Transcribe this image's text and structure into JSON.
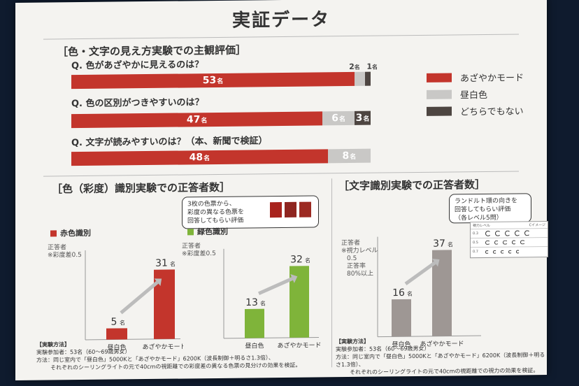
{
  "title": "実証データ",
  "section1": {
    "heading": "［色・文字の見え方実験での主観評価］",
    "unit": "名",
    "questions": [
      {
        "label": "Q. 色があざやかに見えるのは？",
        "values": [
          53,
          2,
          1
        ]
      },
      {
        "label": "Q. 色の区別がつきやすいのは？",
        "values": [
          47,
          6,
          3
        ]
      },
      {
        "label": "Q. 文字が読みやすいのは？（本、新聞で検証）",
        "values": [
          48,
          8,
          0
        ]
      }
    ],
    "legend": [
      "あざやかモード",
      "昼白色",
      "どちらでもない"
    ],
    "colors": [
      "#c3352c",
      "#c9c8c6",
      "#4d4541"
    ]
  },
  "section2": {
    "heading": "［色（彩度）識別実験での正答者数］",
    "callout": [
      "3枚の色票から、",
      "彩度の異なる色票を",
      "回答してもらい評価"
    ],
    "red_panel": {
      "key": "赤色識別",
      "axis_label": [
        "正答者",
        "※彩度差0.5"
      ],
      "categories": [
        "昼白色",
        "あざやかモード"
      ],
      "values": [
        5,
        31
      ],
      "colors": [
        "#c3352c",
        "#c3352c"
      ]
    },
    "green_panel": {
      "key": "緑色識別",
      "axis_label": [
        "正答者",
        "※彩度差0.5"
      ],
      "categories": [
        "昼白色",
        "あざやかモード"
      ],
      "values": [
        13,
        32
      ],
      "colors": [
        "#7fb43a",
        "#7fb43a"
      ]
    },
    "note": [
      "【実験方法】",
      "実験参加者：53名（60～69歳男女）",
      "方法：同じ室内で「昼白色」5000Kと「あざやかモード」6200K（波長制御＋明るさ1.3倍）、",
      "それぞれのシーリングライトの元で40cmの視距離での彩度差の異なる色票の見分けの効果を検証。"
    ]
  },
  "section3": {
    "heading": "［文字識別実験での正答者数］",
    "callout": [
      "ランドルト環の向きを",
      "回答してもらい評価",
      "（各レベル5問）"
    ],
    "chart_label": "視力レベル",
    "chart_label_right": "Cイメージ",
    "level_rows": [
      "0.3",
      "0.5",
      "0.7"
    ],
    "axis_label": [
      "正答者",
      "※視力レベル",
      "0.5",
      "正答率",
      "80%以上"
    ],
    "categories": [
      "昼白色",
      "あざやかモード"
    ],
    "values": [
      16,
      37
    ],
    "colors": [
      "#9e9794",
      "#9e9794"
    ],
    "note": [
      "【実験方法】",
      "実験参加者：53名（60～69歳男女）",
      "方法：同じ室内で「昼白色」5000Kと「あざやかモード」6200K（波長制御＋明るさ1.3倍）、",
      "それぞれのシーリングライトの元で40cmの視距離での視力の効果を検証。"
    ]
  },
  "chart_data": [
    {
      "type": "bar",
      "title": "［色・文字の見え方実験での主観評価］",
      "categories": [
        "Q. 色があざやかに見えるのは？",
        "Q. 色の区別がつきやすいのは？",
        "Q. 文字が読みやすいのは？（本、新聞で検証）"
      ],
      "series": [
        {
          "name": "あざやかモード",
          "values": [
            53,
            47,
            48
          ]
        },
        {
          "name": "昼白色",
          "values": [
            2,
            6,
            8
          ]
        },
        {
          "name": "どちらでもない",
          "values": [
            1,
            3,
            0
          ]
        }
      ],
      "stacked": true,
      "orientation": "horizontal"
    },
    {
      "type": "bar",
      "title": "赤色識別",
      "categories": [
        "昼白色",
        "あざやかモード"
      ],
      "values": [
        5,
        31
      ],
      "ylabel": "正答者"
    },
    {
      "type": "bar",
      "title": "緑色識別",
      "categories": [
        "昼白色",
        "あざやかモード"
      ],
      "values": [
        13,
        32
      ],
      "ylabel": "正答者"
    },
    {
      "type": "bar",
      "title": "［文字識別実験での正答者数］",
      "categories": [
        "昼白色",
        "あざやかモード"
      ],
      "values": [
        16,
        37
      ],
      "ylabel": "正答者"
    }
  ]
}
